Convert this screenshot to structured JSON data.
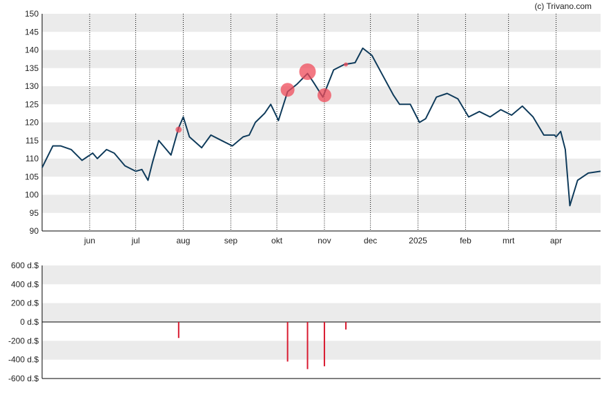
{
  "copyright": "(c) Trivano.com",
  "colors": {
    "line": "#0e3a5a",
    "band": "#ebebeb",
    "marker": "#ef4b5a",
    "bar": "#d8182e",
    "axis": "#000000",
    "grid": "#000000"
  },
  "chart_data": [
    {
      "type": "line",
      "title": "",
      "xlabel": "",
      "ylabel": "",
      "ylim": [
        90,
        150
      ],
      "yticks": [
        "90",
        "95",
        "100",
        "105",
        "110",
        "115",
        "120",
        "125",
        "130",
        "135",
        "140",
        "145",
        "150"
      ],
      "xtick_labels": [
        "jun",
        "jul",
        "aug",
        "sep",
        "okt",
        "nov",
        "dec",
        "2025",
        "feb",
        "mrt",
        "apr"
      ],
      "grid": "vertical dotted at month starts, alternating horizontal bands",
      "x": [
        "2024-05-01",
        "2024-05-08",
        "2024-05-13",
        "2024-05-20",
        "2024-05-27",
        "2024-06-03",
        "2024-06-06",
        "2024-06-12",
        "2024-06-17",
        "2024-06-24",
        "2024-07-01",
        "2024-07-05",
        "2024-07-09",
        "2024-07-12",
        "2024-07-16",
        "2024-07-19",
        "2024-07-24",
        "2024-07-29",
        "2024-08-01",
        "2024-08-05",
        "2024-08-09",
        "2024-08-13",
        "2024-08-19",
        "2024-08-26",
        "2024-09-02",
        "2024-09-09",
        "2024-09-13",
        "2024-09-17",
        "2024-09-23",
        "2024-09-27",
        "2024-10-01",
        "2024-10-02",
        "2024-10-08",
        "2024-10-14",
        "2024-10-21",
        "2024-10-25",
        "2024-10-31",
        "2024-11-07",
        "2024-11-14",
        "2024-11-21",
        "2024-11-26",
        "2024-12-02",
        "2024-12-09",
        "2024-12-16",
        "2024-12-20",
        "2024-12-27",
        "2025-01-02",
        "2025-01-06",
        "2025-01-13",
        "2025-01-20",
        "2025-01-27",
        "2025-02-03",
        "2025-02-10",
        "2025-02-17",
        "2025-02-24",
        "2025-03-03",
        "2025-03-10",
        "2025-03-17",
        "2025-03-24",
        "2025-03-31",
        "2025-04-01",
        "2025-04-04",
        "2025-04-07",
        "2025-04-10",
        "2025-04-15",
        "2025-04-22",
        "2025-04-30"
      ],
      "series": [
        {
          "values": [
            107.5,
            113.5,
            113.5,
            112.5,
            109.5,
            111.5,
            110,
            112.5,
            111.5,
            108,
            106.5,
            107,
            104,
            109,
            115,
            113.5,
            111,
            118.5,
            121.5,
            116,
            114.5,
            113,
            116.5,
            115,
            113.5,
            116,
            116.5,
            120,
            122.5,
            125,
            121.5,
            120.5,
            128.5,
            130.5,
            133.5,
            131,
            127,
            134.5,
            136,
            136.5,
            140.5,
            138.5,
            133,
            127.5,
            125,
            125,
            120,
            121,
            127,
            128,
            126.5,
            121.5,
            123,
            121.5,
            123.5,
            122,
            124.5,
            121.5,
            116.5,
            116.5,
            116,
            117.5,
            112.5,
            97,
            104,
            106,
            106.5
          ]
        }
      ],
      "markers": [
        {
          "x": "2024-07-29",
          "y": 118,
          "size": "small"
        },
        {
          "x": "2024-10-08",
          "y": 129,
          "size": "medium"
        },
        {
          "x": "2024-10-21",
          "y": 134,
          "size": "large"
        },
        {
          "x": "2024-11-01",
          "y": 127.5,
          "size": "medium"
        },
        {
          "x": "2024-11-15",
          "y": 136,
          "size": "tiny"
        }
      ]
    },
    {
      "type": "bar",
      "title": "",
      "xlabel": "",
      "ylabel": "",
      "ylim": [
        -600,
        600
      ],
      "yticks": [
        "-600 d.$",
        "-400 d.$",
        "-200 d.$",
        "0 d.$",
        "200 d.$",
        "400 d.$",
        "600 d.$"
      ],
      "x": [
        "2024-07-29",
        "2024-10-08",
        "2024-10-21",
        "2024-11-01",
        "2024-11-15"
      ],
      "values": [
        -170,
        -420,
        -500,
        -470,
        -80
      ]
    }
  ]
}
